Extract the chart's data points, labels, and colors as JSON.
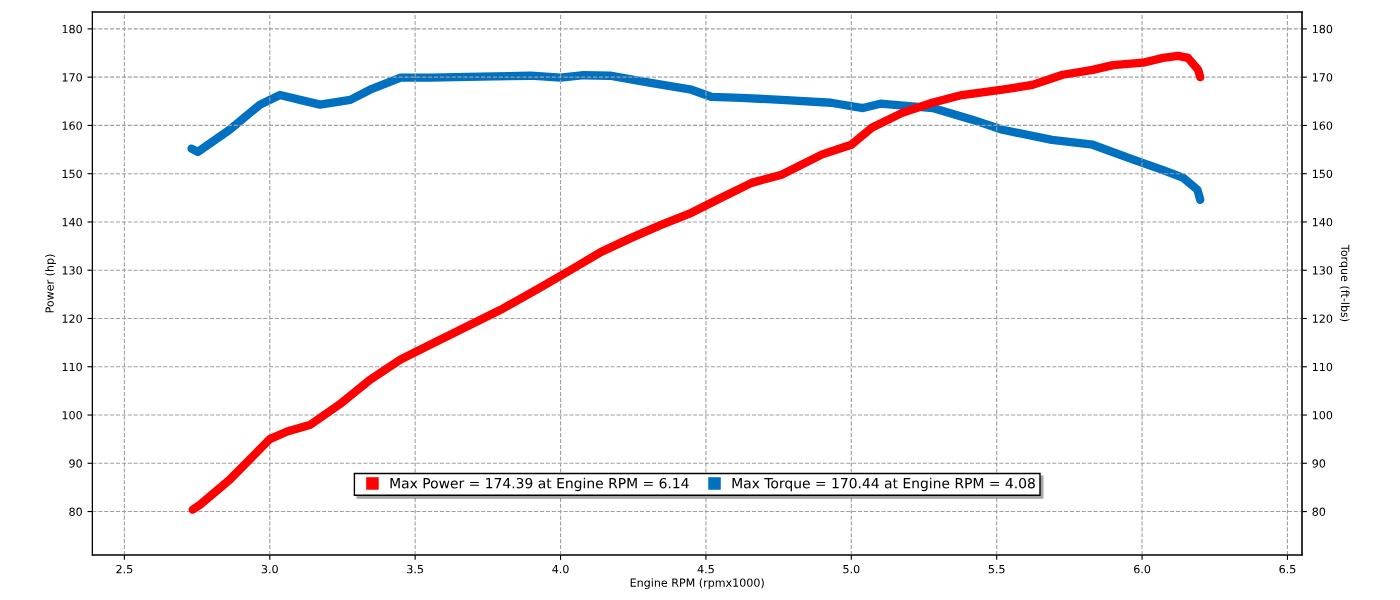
{
  "chart_data": {
    "type": "line",
    "xlabel": "Engine RPM (rpmx1000)",
    "ylabel": "Power (hp)",
    "y2label": "Torque (ft-lbs)",
    "xlim": [
      2.39,
      6.55
    ],
    "xticks": [
      {
        "value": 2.5,
        "label": "2.5"
      },
      {
        "value": 3,
        "label": "3.0"
      },
      {
        "value": 3.5,
        "label": "3.5"
      },
      {
        "value": 4,
        "label": "4.0"
      },
      {
        "value": 4.5,
        "label": "4.5"
      },
      {
        "value": 5,
        "label": "5.0"
      },
      {
        "value": 5.5,
        "label": "5.5"
      },
      {
        "value": 6,
        "label": "6.0"
      },
      {
        "value": 6.5,
        "label": "6.5"
      }
    ],
    "ylim": [
      71,
      183.5
    ],
    "yticks": [
      80,
      90,
      100,
      110,
      120,
      130,
      140,
      150,
      160,
      170,
      180
    ],
    "y2lim": [
      71,
      183.5
    ],
    "y2ticks": [
      80,
      90,
      100,
      110,
      120,
      130,
      140,
      150,
      160,
      170,
      180
    ],
    "grid": true,
    "legend": "bottom",
    "line_style": "solid",
    "marker": "none",
    "series": [
      {
        "name": "Max Power = 174.39 at Engine RPM = 6.14",
        "color": "#ff0000",
        "axis": "y",
        "x": [
          2.735,
          2.76,
          2.862,
          3.0,
          3.06,
          3.14,
          3.24,
          3.345,
          3.45,
          3.553,
          3.69,
          3.794,
          3.93,
          4.036,
          4.14,
          4.243,
          4.346,
          4.45,
          4.553,
          4.657,
          4.76,
          4.9,
          5.0,
          5.07,
          5.175,
          5.278,
          5.38,
          5.52,
          5.623,
          5.727,
          5.83,
          5.9,
          6.003,
          6.072,
          6.124,
          6.158,
          6.193,
          6.2
        ],
        "values": [
          80.4,
          81.4,
          86.6,
          95,
          96.6,
          98,
          102.2,
          107.3,
          111.5,
          114.6,
          118.7,
          121.8,
          126.4,
          130.1,
          133.8,
          136.7,
          139.4,
          141.9,
          145,
          148.1,
          149.8,
          154,
          156,
          159.5,
          162.6,
          164.7,
          166.3,
          167.4,
          168.4,
          170.5,
          171.5,
          172.5,
          173,
          174,
          174.4,
          174,
          171.5,
          170
        ]
      },
      {
        "name": "Max Torque = 170.44 at Engine RPM = 4.08",
        "color": "#0070c0",
        "axis": "y2",
        "x": [
          2.731,
          2.752,
          2.862,
          2.966,
          3.035,
          3.104,
          3.173,
          3.277,
          3.345,
          3.45,
          3.553,
          3.725,
          3.898,
          4.0,
          4.08,
          4.17,
          4.31,
          4.45,
          4.52,
          4.62,
          4.76,
          4.93,
          5.04,
          5.1,
          5.28,
          5.416,
          5.52,
          5.69,
          5.83,
          5.97,
          6.07,
          6.14,
          6.19,
          6.2
        ],
        "values": [
          155.2,
          154.5,
          159.1,
          164.3,
          166.3,
          165.3,
          164.3,
          165.3,
          167.4,
          169.9,
          169.9,
          170.1,
          170.3,
          169.9,
          170.4,
          170.3,
          168.8,
          167.4,
          165.9,
          165.7,
          165.3,
          164.7,
          163.6,
          164.5,
          163.6,
          161.2,
          159.1,
          157,
          156,
          152.9,
          150.8,
          149.2,
          146.7,
          144.6
        ]
      }
    ]
  }
}
